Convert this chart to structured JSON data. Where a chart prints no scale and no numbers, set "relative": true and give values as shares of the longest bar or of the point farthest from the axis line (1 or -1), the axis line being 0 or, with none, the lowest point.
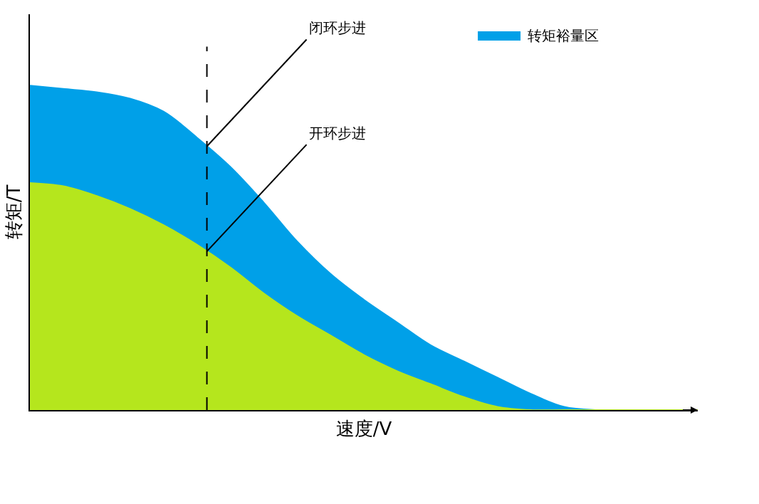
{
  "chart_data": {
    "type": "area",
    "relative": true,
    "xlabel": "速度/V",
    "ylabel": "转矩/T",
    "categories": [
      null,
      null,
      null,
      null,
      null,
      null,
      null,
      null,
      null,
      null,
      null,
      null,
      null,
      null,
      null,
      null,
      null,
      null,
      null,
      null,
      null
    ],
    "series": [
      {
        "name": "转矩裕量区",
        "color": "#00a0e8",
        "values": [
          1,
          0.99,
          0.98,
          0.96,
          0.92,
          0.84,
          0.75,
          0.64,
          0.52,
          0.42,
          0.34,
          0.27,
          0.2,
          0.15,
          0.1,
          0.05,
          0.01,
          0,
          0,
          0,
          0
        ]
      },
      {
        "color": "#b5e61d",
        "values": [
          0.7,
          0.69,
          0.66,
          0.62,
          0.57,
          0.51,
          0.44,
          0.36,
          0.29,
          0.23,
          0.17,
          0.12,
          0.08,
          0.04,
          0.01,
          0,
          0,
          0,
          0,
          0,
          0
        ]
      }
    ],
    "annotations": [
      "闭环步进",
      "开环步进"
    ],
    "legend": "top right"
  }
}
